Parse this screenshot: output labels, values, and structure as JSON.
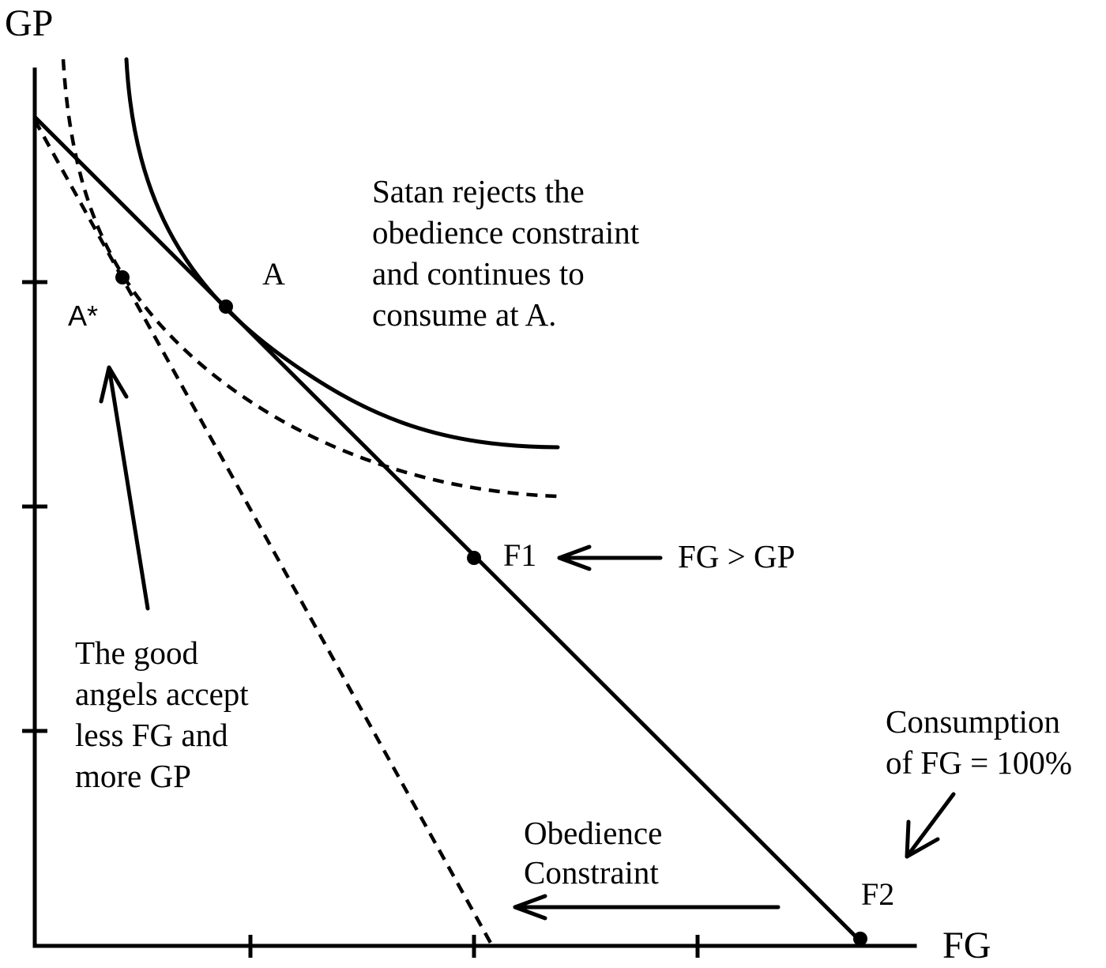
{
  "axes": {
    "y_label": "GP",
    "x_label": "FG"
  },
  "points": {
    "a": "A",
    "a_star": "A*",
    "f1": "F1",
    "f2": "F2"
  },
  "annotations": {
    "satan": [
      "Satan rejects the",
      "obedience constraint",
      "and continues to",
      "consume at A."
    ],
    "good_angels": [
      "The good",
      "angels accept",
      "less FG and",
      "more GP"
    ],
    "fg_gt_gp": "FG > GP",
    "consumption": [
      "Consumption",
      "of FG = 100%"
    ],
    "obedience": [
      "Obedience",
      "Constraint"
    ]
  }
}
